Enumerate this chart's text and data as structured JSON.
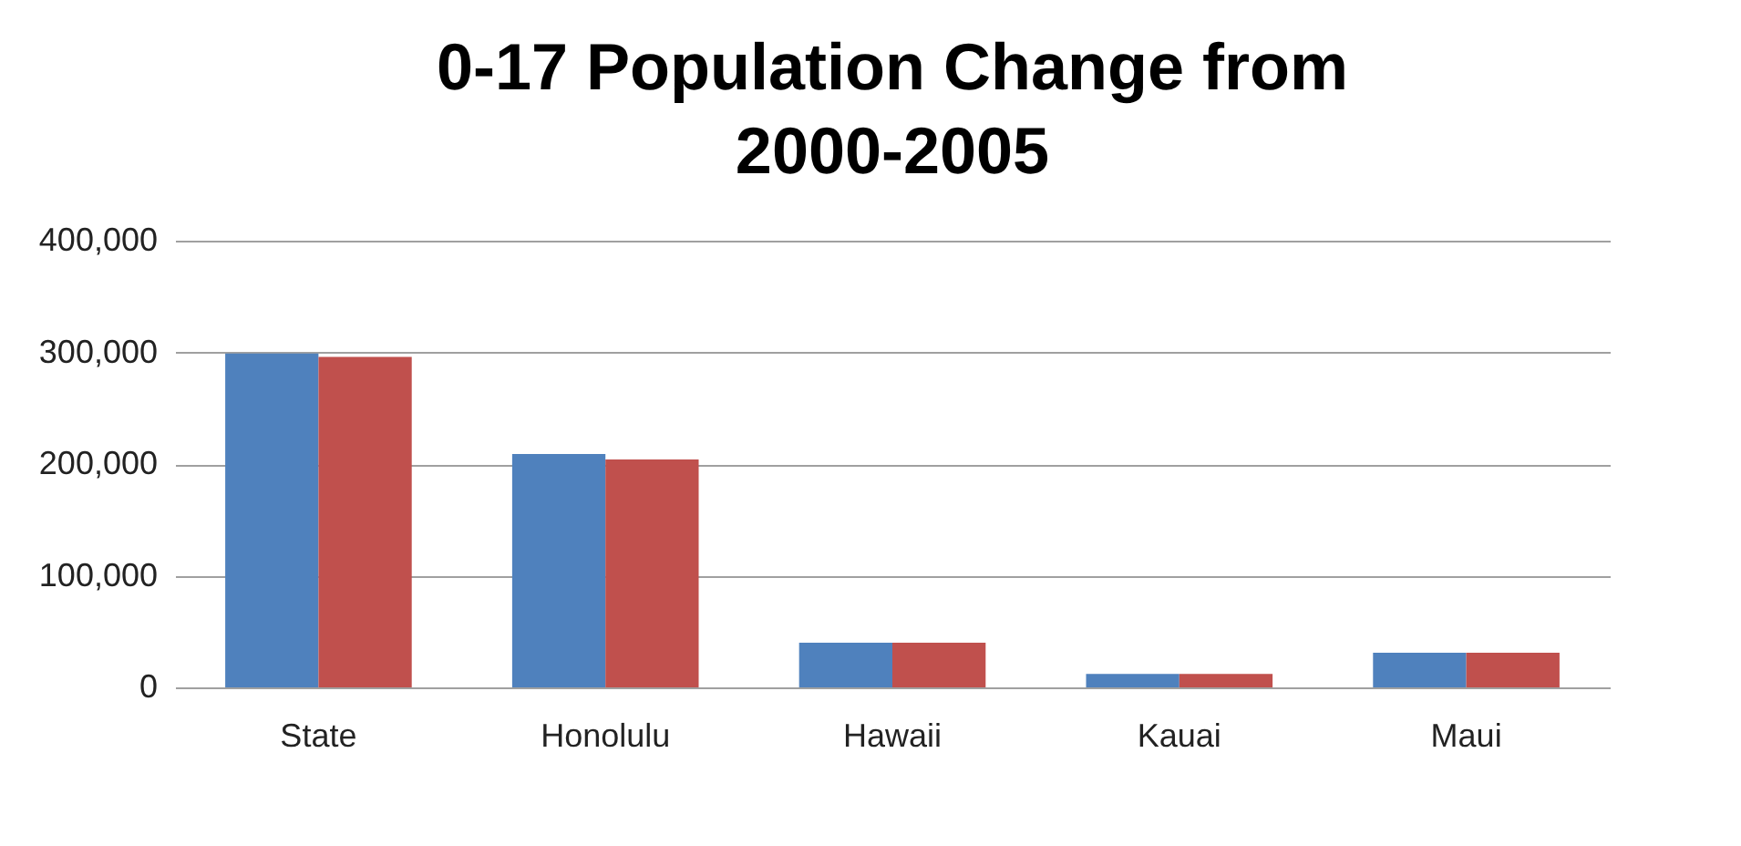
{
  "chart_data": {
    "type": "bar",
    "title": "0-17 Population Change from 2000-2005",
    "categories": [
      "State",
      "Honolulu",
      "Hawaii",
      "Kauai",
      "Maui"
    ],
    "series": [
      {
        "color": "#4f81bd",
        "values": [
          299000,
          209000,
          40000,
          12000,
          31000
        ]
      },
      {
        "color": "#c0504d",
        "values": [
          296000,
          204000,
          40000,
          12000,
          31000
        ]
      }
    ],
    "ylim": [
      0,
      400000
    ],
    "yticks": [
      0,
      {
        "value": 100000,
        "label": "100,000"
      },
      {
        "value": 200000,
        "label": "200,000"
      },
      {
        "value": 300000,
        "label": "300,000"
      },
      {
        "value": 400000,
        "label": "400,000"
      }
    ],
    "grid": "y",
    "legend": false
  }
}
